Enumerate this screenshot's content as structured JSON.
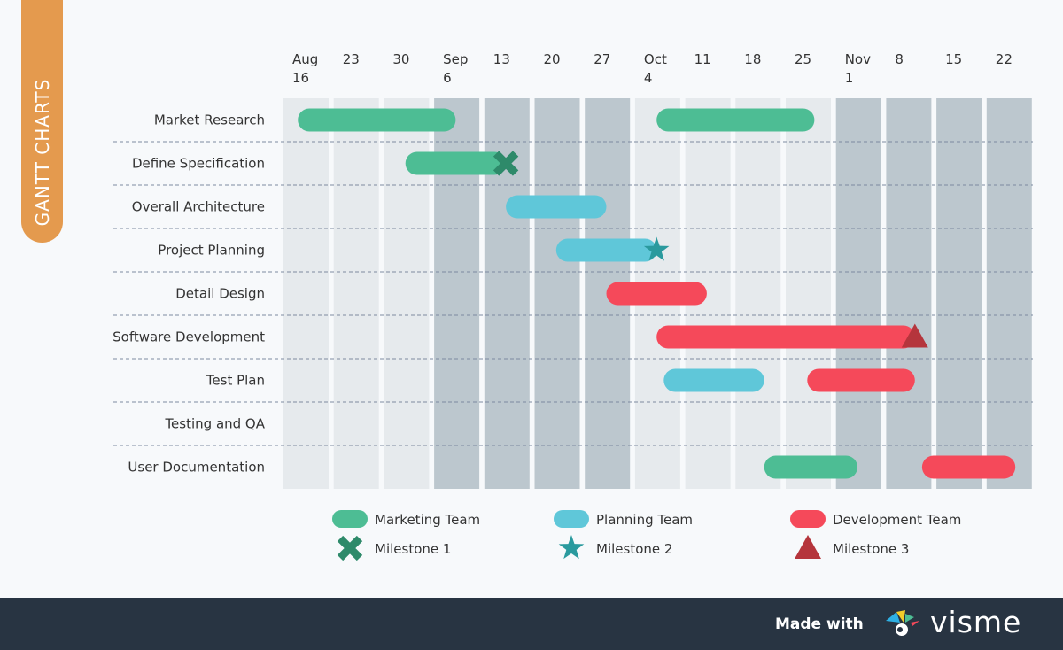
{
  "side_label": "GANTT CHARTS",
  "footer": {
    "made_with": "Made with",
    "brand": "visme"
  },
  "chart_data": {
    "type": "gantt",
    "columns": [
      {
        "label": [
          "Aug",
          "16"
        ],
        "shade": "light"
      },
      {
        "label": [
          "23"
        ],
        "shade": "light"
      },
      {
        "label": [
          "30"
        ],
        "shade": "light"
      },
      {
        "label": [
          "Sep",
          "6"
        ],
        "shade": "dark"
      },
      {
        "label": [
          "13"
        ],
        "shade": "dark"
      },
      {
        "label": [
          "20"
        ],
        "shade": "dark"
      },
      {
        "label": [
          "27"
        ],
        "shade": "dark"
      },
      {
        "label": [
          "Oct",
          "4"
        ],
        "shade": "light"
      },
      {
        "label": [
          "11"
        ],
        "shade": "light"
      },
      {
        "label": [
          "18"
        ],
        "shade": "light"
      },
      {
        "label": [
          "25"
        ],
        "shade": "light"
      },
      {
        "label": [
          "Nov",
          "1"
        ],
        "shade": "dark"
      },
      {
        "label": [
          "8"
        ],
        "shade": "dark"
      },
      {
        "label": [
          "15"
        ],
        "shade": "dark"
      },
      {
        "label": [
          "22"
        ],
        "shade": "dark"
      }
    ],
    "start_date": "Aug 16",
    "tasks": [
      {
        "name": "Market Research",
        "bars": [
          {
            "team": "marketing",
            "start": "Aug 18",
            "end": "Sep 9"
          },
          {
            "team": "marketing",
            "start": "Oct 7",
            "end": "Oct 29"
          }
        ]
      },
      {
        "name": "Define Specification",
        "bars": [
          {
            "team": "marketing",
            "start": "Sep 2",
            "end": "Sep 16"
          }
        ],
        "milestone": {
          "type": "m1",
          "date": "Sep 16"
        }
      },
      {
        "name": "Overall Architecture",
        "bars": [
          {
            "team": "planning",
            "start": "Sep 16",
            "end": "Sep 30"
          }
        ]
      },
      {
        "name": "Project Planning",
        "bars": [
          {
            "team": "planning",
            "start": "Sep 23",
            "end": "Oct 7"
          }
        ],
        "milestone": {
          "type": "m2",
          "date": "Oct 7"
        }
      },
      {
        "name": "Detail Design",
        "bars": [
          {
            "team": "development",
            "start": "Sep 30",
            "end": "Oct 14"
          }
        ]
      },
      {
        "name": "Software Development",
        "bars": [
          {
            "team": "development",
            "start": "Oct 7",
            "end": "Nov 12"
          }
        ],
        "milestone": {
          "type": "m3",
          "date": "Nov 12"
        }
      },
      {
        "name": "Test Plan",
        "bars": [
          {
            "team": "planning",
            "start": "Oct 8",
            "end": "Oct 22"
          },
          {
            "team": "development",
            "start": "Oct 28",
            "end": "Nov 12"
          }
        ]
      },
      {
        "name": "Testing and QA",
        "bars": []
      },
      {
        "name": "User Documentation",
        "bars": [
          {
            "team": "marketing",
            "start": "Oct 22",
            "end": "Nov 4"
          },
          {
            "team": "development",
            "start": "Nov 13",
            "end": "Nov 26"
          }
        ]
      }
    ],
    "legend": [
      {
        "key": "marketing",
        "label": "Marketing Team",
        "shape": "bar"
      },
      {
        "key": "planning",
        "label": "Planning Team",
        "shape": "bar"
      },
      {
        "key": "development",
        "label": "Development Team",
        "shape": "bar"
      },
      {
        "key": "m1",
        "label": "Milestone 1",
        "shape": "x"
      },
      {
        "key": "m2",
        "label": "Milestone 2",
        "shape": "star"
      },
      {
        "key": "m3",
        "label": "Milestone 3",
        "shape": "triangle"
      }
    ],
    "colors": {
      "marketing": "#4dbd94",
      "planning": "#5fc7d9",
      "development": "#f5495a",
      "m1": "#2e8a6a",
      "m2": "#2a9a9e",
      "m3": "#b5353c",
      "light": "#e6eaed",
      "dark": "#bcc7ce"
    }
  }
}
